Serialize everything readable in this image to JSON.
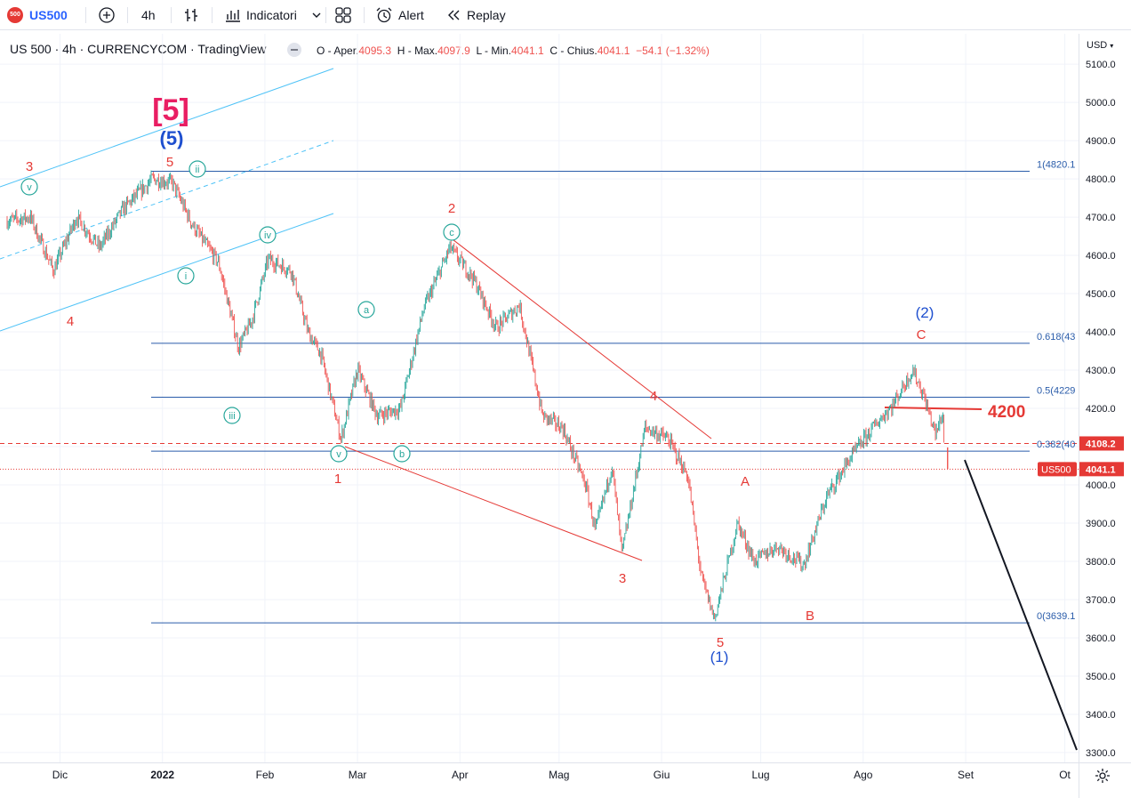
{
  "toolbar": {
    "symbol_badge": "500",
    "symbol": "US500",
    "interval": "4h",
    "indicators_label": "Indicatori",
    "alert_label": "Alert",
    "replay_label": "Replay",
    "icons": [
      "symbol-logo-icon",
      "plus-circle-icon",
      "bar-style-icon",
      "indicators-icon",
      "chevron-down-icon",
      "templates-grid-icon",
      "alarm-clock-icon",
      "replay-icon"
    ]
  },
  "legend": {
    "title": "US 500 · 4h · CURRENCYCOM · TradingView",
    "o_label": "O - Aper.",
    "o_value": "4095.3",
    "h_label": "H - Max.",
    "h_value": "4097.9",
    "l_label": "L - Min.",
    "l_value": "4041.1",
    "c_label": "C - Chius.",
    "c_value": "4041.1",
    "change": "−54.1 (−1.32%)"
  },
  "price_scale": {
    "currency": "USD",
    "ticks": [
      "5100.0",
      "5000.0",
      "4900.0",
      "4800.0",
      "4700.0",
      "4600.0",
      "4500.0",
      "4400.0",
      "4300.0",
      "4200.0",
      "4100.0",
      "4000.0",
      "3900.0",
      "3800.0",
      "3700.0",
      "3600.0",
      "3500.0",
      "3400.0",
      "3300.0"
    ],
    "last_price_tag": "4041.1",
    "last_price_symbol": "US500",
    "dashed_level_tag": "4108.2"
  },
  "time_scale": {
    "labels": [
      "Dic",
      "2022",
      "Feb",
      "Mar",
      "Apr",
      "Mag",
      "Giu",
      "Lug",
      "Ago",
      "Set",
      "Ot"
    ]
  },
  "colors": {
    "up": "#26a69a",
    "down": "#ef5350",
    "wave_red": "#e53935",
    "wave_blue": "#1e4fcf",
    "wave_pink": "#e91e63",
    "fib_line": "#2a5caa",
    "channel": "#4fc3f7"
  },
  "chart_data": {
    "type": "candlestick",
    "title": "US 500 · 4h · CURRENCYCOM · TradingView",
    "x_range": [
      "2021-11-15",
      "2022-10-03"
    ],
    "ylim": [
      3280,
      5130
    ],
    "close_path": [
      [
        "2021-11-15",
        4690
      ],
      [
        "2021-11-22",
        4700
      ],
      [
        "2021-11-29",
        4560
      ],
      [
        "2021-12-06",
        4700
      ],
      [
        "2021-12-13",
        4620
      ],
      [
        "2021-12-20",
        4720
      ],
      [
        "2021-12-29",
        4800
      ],
      [
        "2022-01-04",
        4790
      ],
      [
        "2022-01-10",
        4680
      ],
      [
        "2022-01-18",
        4580
      ],
      [
        "2022-01-24",
        4360
      ],
      [
        "2022-01-28",
        4430
      ],
      [
        "2022-02-02",
        4590
      ],
      [
        "2022-02-09",
        4560
      ],
      [
        "2022-02-14",
        4400
      ],
      [
        "2022-02-18",
        4340
      ],
      [
        "2022-02-24",
        4120
      ],
      [
        "2022-03-01",
        4300
      ],
      [
        "2022-03-07",
        4180
      ],
      [
        "2022-03-14",
        4200
      ],
      [
        "2022-03-21",
        4460
      ],
      [
        "2022-03-29",
        4620
      ],
      [
        "2022-04-05",
        4540
      ],
      [
        "2022-04-12",
        4410
      ],
      [
        "2022-04-19",
        4470
      ],
      [
        "2022-04-26",
        4180
      ],
      [
        "2022-05-02",
        4150
      ],
      [
        "2022-05-09",
        4000
      ],
      [
        "2022-05-12",
        3880
      ],
      [
        "2022-05-17",
        4050
      ],
      [
        "2022-05-20",
        3820
      ],
      [
        "2022-05-27",
        4150
      ],
      [
        "2022-06-03",
        4120
      ],
      [
        "2022-06-09",
        4020
      ],
      [
        "2022-06-13",
        3760
      ],
      [
        "2022-06-17",
        3650
      ],
      [
        "2022-06-24",
        3900
      ],
      [
        "2022-06-29",
        3800
      ],
      [
        "2022-07-06",
        3840
      ],
      [
        "2022-07-14",
        3790
      ],
      [
        "2022-07-21",
        3970
      ],
      [
        "2022-07-28",
        4070
      ],
      [
        "2022-08-04",
        4150
      ],
      [
        "2022-08-10",
        4210
      ],
      [
        "2022-08-16",
        4300
      ],
      [
        "2022-08-19",
        4240
      ],
      [
        "2022-08-23",
        4130
      ],
      [
        "2022-08-25",
        4190
      ],
      [
        "2022-08-26",
        4041.1
      ]
    ],
    "fib_levels": [
      {
        "label": "1(4820.1",
        "price": 4820.1
      },
      {
        "label": "0.618(43",
        "price": 4370
      },
      {
        "label": "0.5(4229",
        "price": 4229
      },
      {
        "label": "0.382(40",
        "price": 4088
      },
      {
        "label": "0(3639.1",
        "price": 3639.1
      }
    ],
    "resistance": {
      "label": "4200",
      "price": 4200
    },
    "wave_labels": [
      {
        "text": "[5]",
        "color": "pink"
      },
      {
        "text": "(5)",
        "color": "blue"
      },
      {
        "text": "(1)",
        "color": "blue"
      },
      {
        "text": "(2)",
        "color": "blue"
      },
      {
        "text": "1",
        "color": "red"
      },
      {
        "text": "2",
        "color": "red"
      },
      {
        "text": "3",
        "color": "red"
      },
      {
        "text": "4",
        "color": "red"
      },
      {
        "text": "5",
        "color": "red"
      },
      {
        "text": "3",
        "color": "red"
      },
      {
        "text": "4",
        "color": "red"
      },
      {
        "text": "5",
        "color": "red"
      },
      {
        "text": "A",
        "color": "red"
      },
      {
        "text": "B",
        "color": "red"
      },
      {
        "text": "C",
        "color": "red"
      },
      {
        "text": "i",
        "color": "teal"
      },
      {
        "text": "ii",
        "color": "teal"
      },
      {
        "text": "iii",
        "color": "teal"
      },
      {
        "text": "iv",
        "color": "teal"
      },
      {
        "text": "v",
        "color": "teal"
      },
      {
        "text": "v",
        "color": "teal"
      },
      {
        "text": "a",
        "color": "teal"
      },
      {
        "text": "b",
        "color": "teal"
      },
      {
        "text": "c",
        "color": "teal"
      }
    ],
    "grid": true
  }
}
